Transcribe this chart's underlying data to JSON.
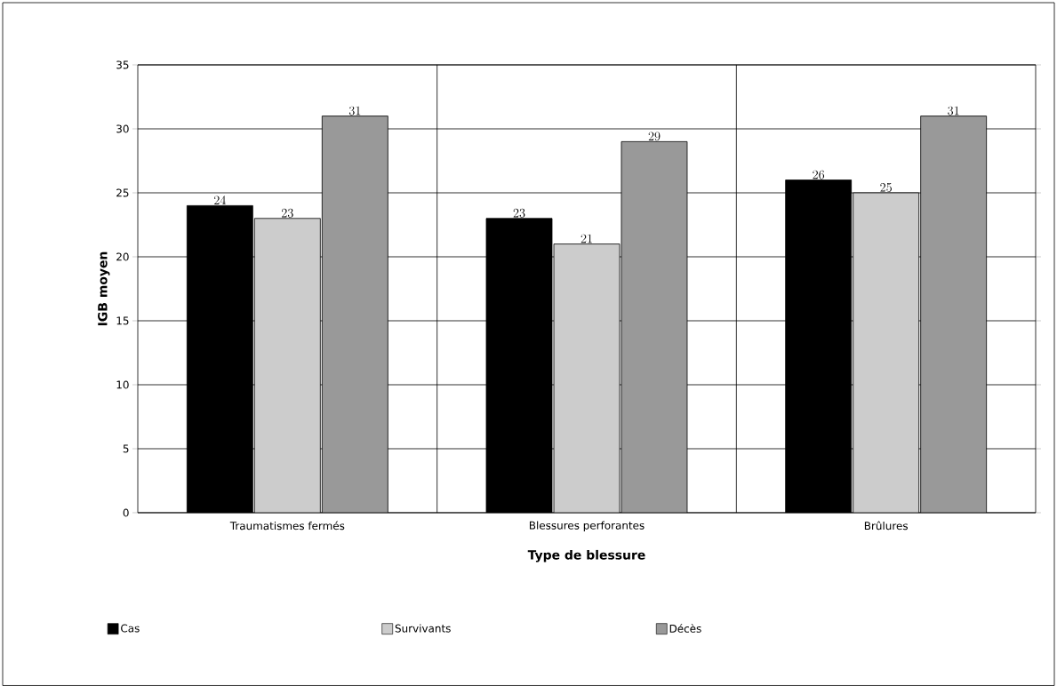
{
  "chart_data": {
    "type": "bar",
    "xlabel": "Type de blessure",
    "ylabel": "IGB moyen",
    "categories": [
      "Traumatismes fermés",
      "Blessures perforantes",
      "Brûlures"
    ],
    "series": [
      {
        "name": "Cas",
        "color": "#000000",
        "values": [
          24,
          23,
          26
        ]
      },
      {
        "name": "Survivants",
        "color": "#cccccc",
        "values": [
          23,
          21,
          25
        ]
      },
      {
        "name": "Décès",
        "color": "#999999",
        "values": [
          31,
          29,
          31
        ]
      }
    ],
    "ylim": [
      0,
      35
    ],
    "yticks": [
      0,
      5,
      10,
      15,
      20,
      25,
      30,
      35
    ],
    "grid": true,
    "legend": "bottom",
    "data_labels": true
  }
}
